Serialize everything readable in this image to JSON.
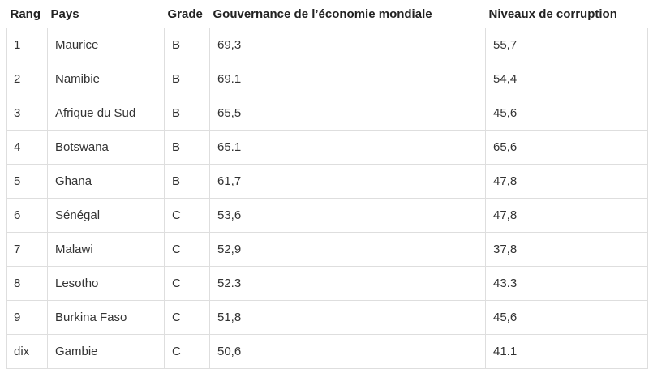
{
  "table": {
    "headers": [
      "Rang",
      "Pays",
      "Grade",
      "Gouvernance de l’économie mondiale",
      "Niveaux de corruption"
    ],
    "rows": [
      [
        "1",
        "Maurice",
        "B",
        "69,3",
        "55,7"
      ],
      [
        "2",
        "Namibie",
        "B",
        "69.1",
        "54,4"
      ],
      [
        "3",
        "Afrique du Sud",
        "B",
        "65,5",
        "45,6"
      ],
      [
        "4",
        "Botswana",
        "B",
        "65.1",
        "65,6"
      ],
      [
        "5",
        "Ghana",
        "B",
        "61,7",
        "47,8"
      ],
      [
        "6",
        "Sénégal",
        "C",
        "53,6",
        "47,8"
      ],
      [
        "7",
        "Malawi",
        "C",
        "52,9",
        "37,8"
      ],
      [
        "8",
        "Lesotho",
        "C",
        "52.3",
        "43.3"
      ],
      [
        "9",
        "Burkina Faso",
        "C",
        "51,8",
        "45,6"
      ],
      [
        "dix",
        "Gambie",
        "C",
        "50,6",
        "41.1"
      ]
    ]
  }
}
